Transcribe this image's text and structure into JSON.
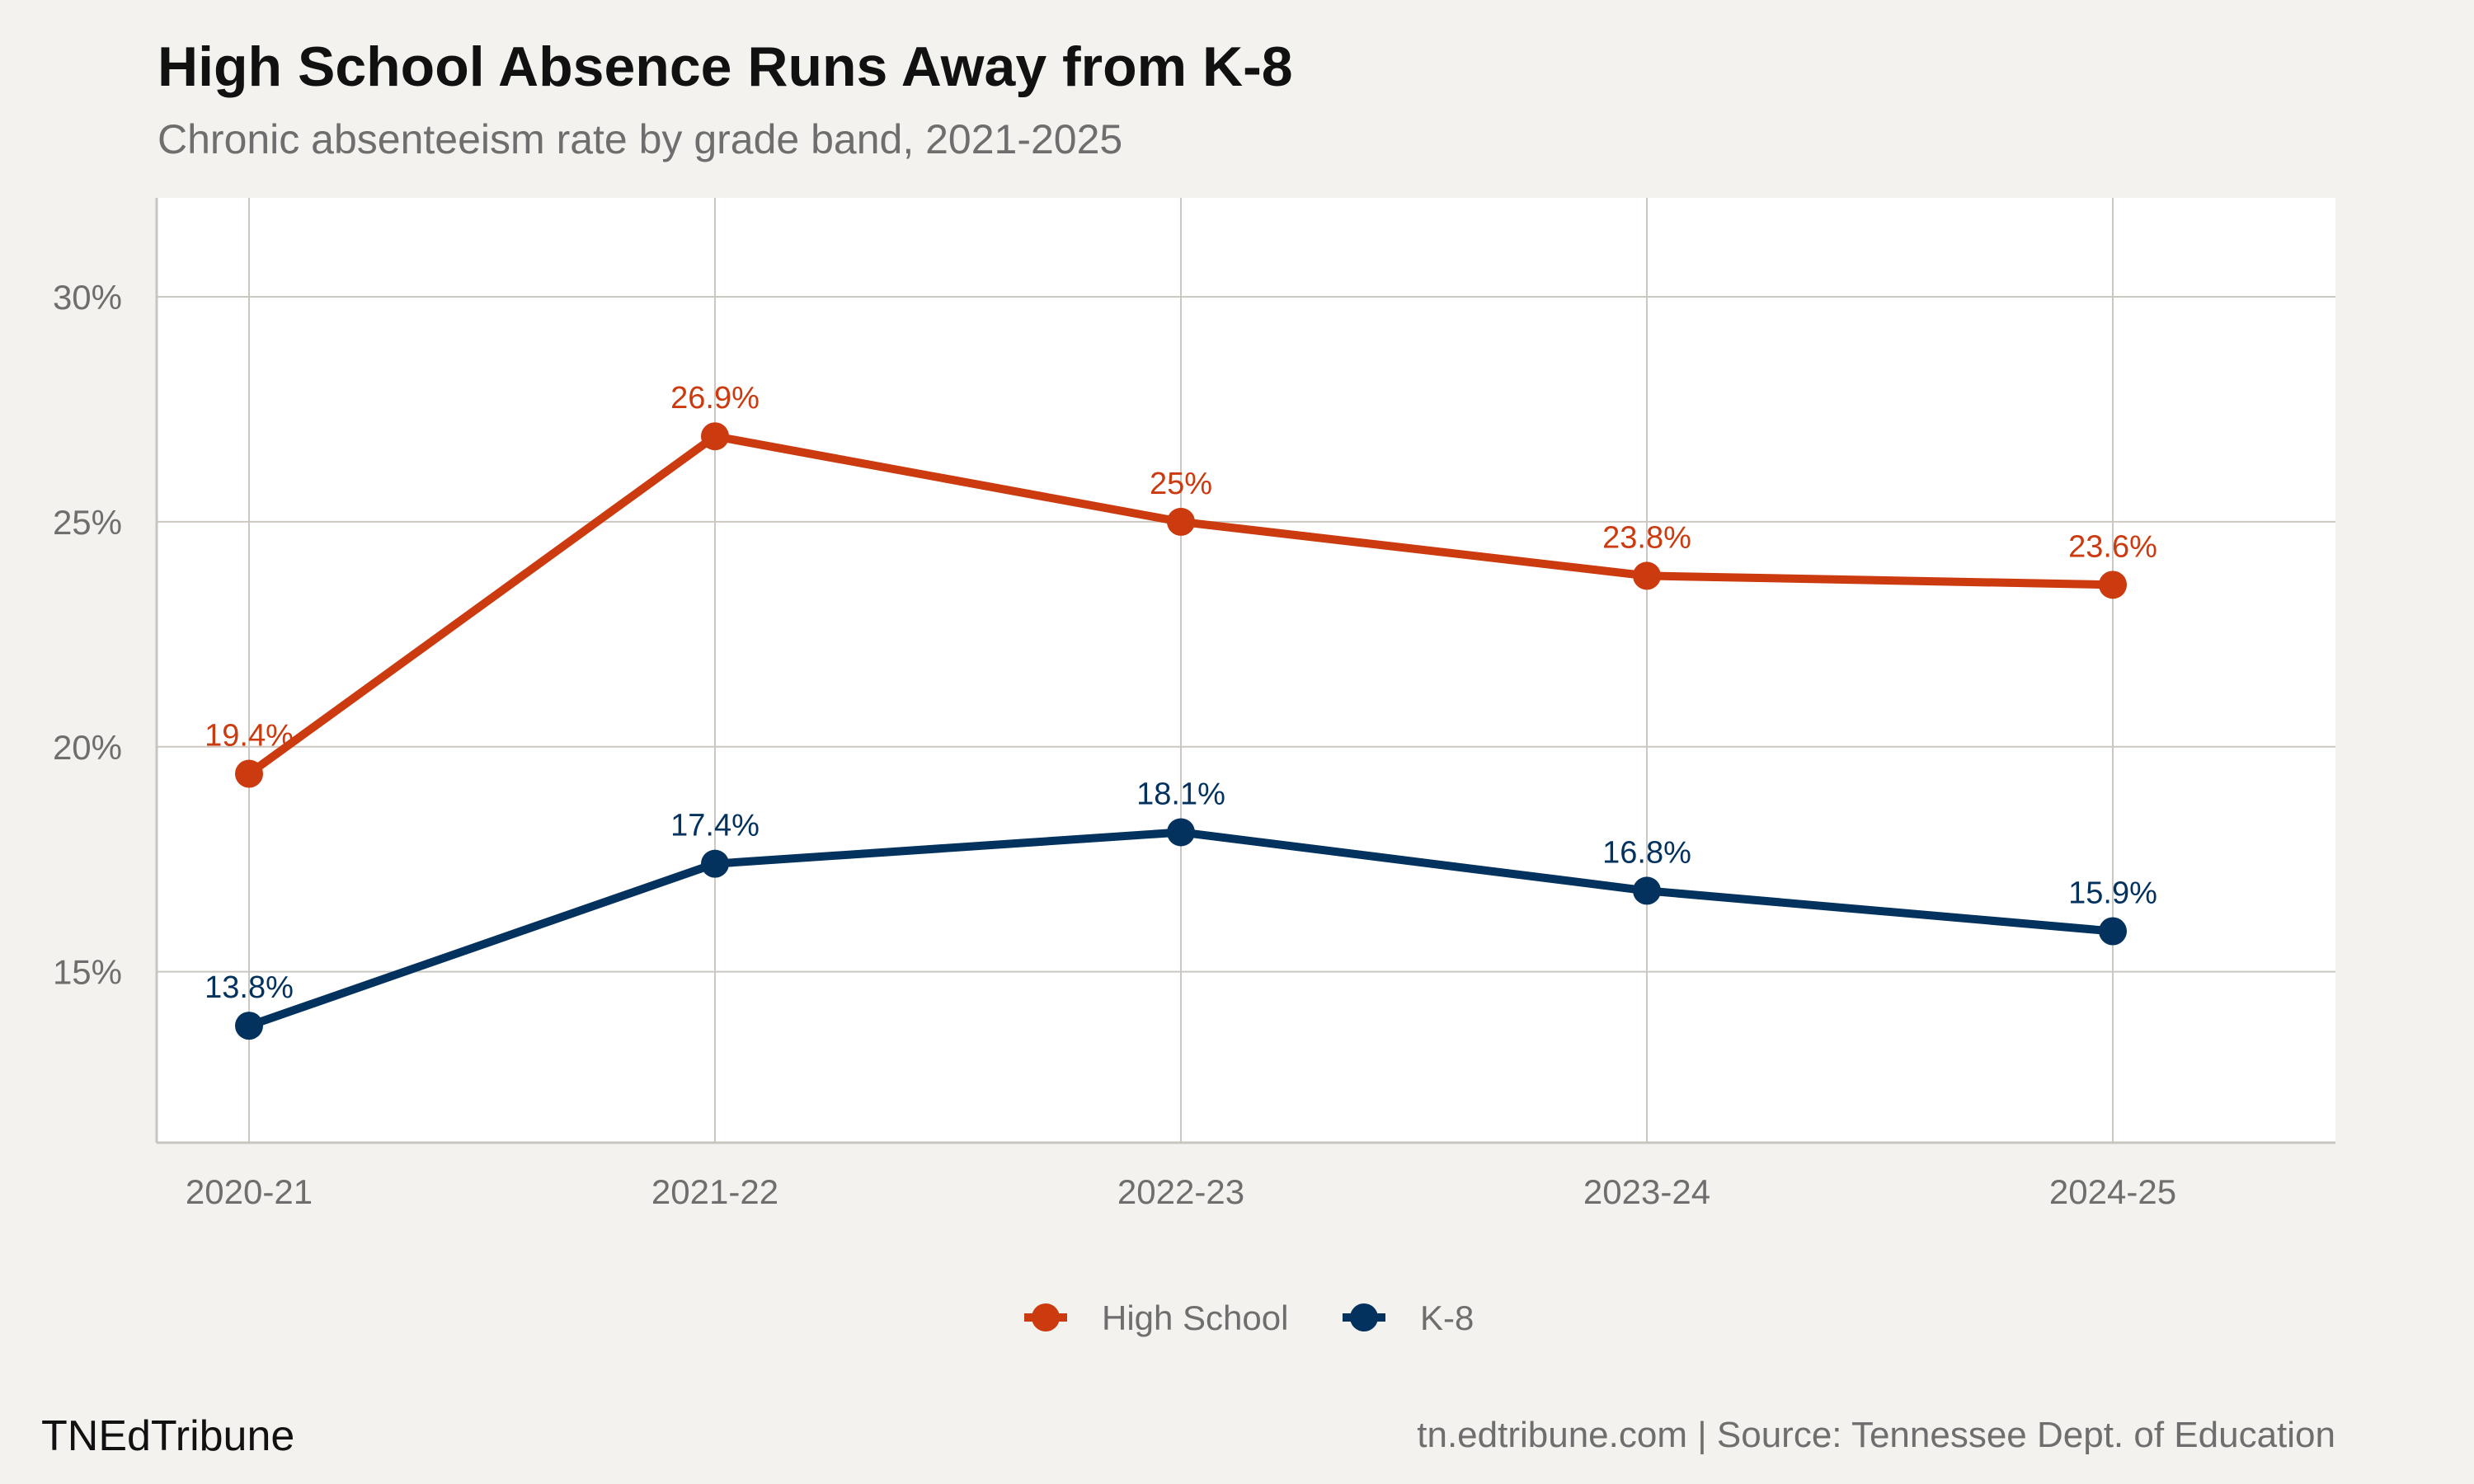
{
  "header": {
    "title": "High School Absence Runs Away from K-8",
    "subtitle": "Chronic absenteeism rate by grade band, 2021-2025"
  },
  "footer": {
    "brand": "TNEdTribune",
    "credit": "tn.edtribune.com | Source: Tennessee Dept. of Education"
  },
  "chart_data": {
    "type": "line",
    "title": "High School Absence Runs Away from K-8",
    "subtitle": "Chronic absenteeism rate by grade band, 2021-2025",
    "xlabel": "",
    "ylabel": "",
    "categories": [
      "2020-21",
      "2021-22",
      "2022-23",
      "2023-24",
      "2024-25"
    ],
    "y_tick_values": [
      15,
      20,
      25,
      30
    ],
    "y_tick_labels": [
      "15%",
      "20%",
      "25%",
      "30%"
    ],
    "ylim": [
      11.2,
      32.2
    ],
    "grid": true,
    "legend_position": "bottom",
    "series": [
      {
        "name": "High School",
        "color": "#cc3a0f",
        "values": [
          19.4,
          26.9,
          25,
          23.8,
          23.6
        ],
        "labels": [
          "19.4%",
          "26.9%",
          "25%",
          "23.8%",
          "23.6%"
        ]
      },
      {
        "name": "K-8",
        "color": "#04325f",
        "values": [
          13.8,
          17.4,
          18.1,
          16.8,
          15.9
        ],
        "labels": [
          "13.8%",
          "17.4%",
          "18.1%",
          "16.8%",
          "15.9%"
        ]
      }
    ]
  }
}
